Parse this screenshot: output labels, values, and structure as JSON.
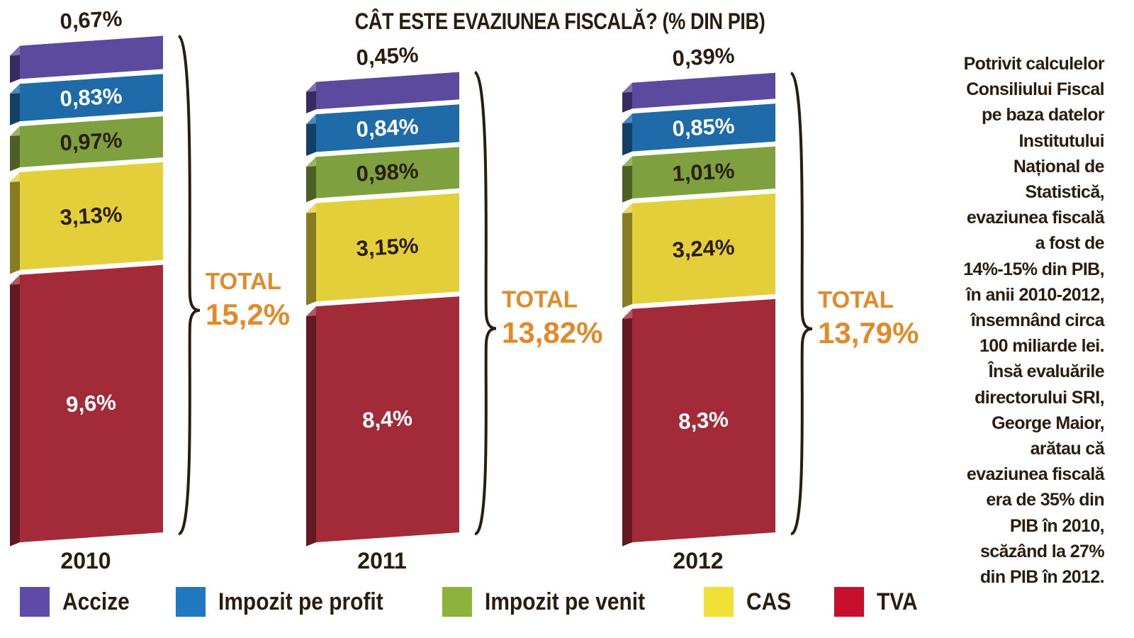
{
  "chart_data": {
    "type": "bar",
    "stacked": true,
    "title": "CÂT ESTE EVAZIUNEA FISCALĂ? (% DIN PIB)",
    "categories": [
      "2010",
      "2011",
      "2012"
    ],
    "series": [
      {
        "name": "TVA",
        "values": [
          9.6,
          8.4,
          8.3
        ],
        "labels": [
          "9,6%",
          "8,4%",
          "8,3%"
        ],
        "color": "#a32a38",
        "legend_color": "#c8102e"
      },
      {
        "name": "CAS",
        "values": [
          3.13,
          3.15,
          3.24
        ],
        "labels": [
          "3,13%",
          "3,15%",
          "3,24%"
        ],
        "color": "#e3cf3a",
        "legend_color": "#f3e034"
      },
      {
        "name": "Impozit pe venit",
        "values": [
          0.97,
          0.98,
          1.01
        ],
        "labels": [
          "0,97%",
          "0,98%",
          "1,01%"
        ],
        "color": "#7fa03f",
        "legend_color": "#8cb43c"
      },
      {
        "name": "Impozit pe profit",
        "values": [
          0.83,
          0.84,
          0.85
        ],
        "labels": [
          "0,83%",
          "0,84%",
          "0,85%"
        ],
        "color": "#1f6aa8",
        "legend_color": "#1f78c0"
      },
      {
        "name": "Accize",
        "values": [
          0.67,
          0.45,
          0.39
        ],
        "labels": [
          "0,67%",
          "0,45%",
          "0,39%"
        ],
        "color": "#5b4a9e",
        "legend_color": "#5e4ca8"
      }
    ],
    "totals": [
      {
        "label": "TOTAL",
        "value": "15,2%"
      },
      {
        "label": "TOTAL",
        "value": "13,82%"
      },
      {
        "label": "TOTAL",
        "value": "13,79%"
      }
    ],
    "total_color": "#e08a2a",
    "legend_order": [
      "Accize",
      "Impozit pe profit",
      "Impozit pe venit",
      "CAS",
      "TVA"
    ],
    "legend_placement": "bottom",
    "grid": false,
    "axes_visible": false
  },
  "note_lines": [
    "Potrivit calculelor",
    "Consiliului Fiscal",
    "pe baza datelor",
    "Institutului",
    "Național de",
    "Statistică,",
    "evaziunea fiscală",
    "a fost de",
    "14%-15% din PIB,",
    "în anii 2010-2012,",
    "însemnând circa",
    "100 miliarde lei.",
    "Însă evaluările",
    "directorului SRI,",
    "George Maior,",
    "arătau că",
    "evaziunea fiscală",
    "era de 35% din",
    "PIB în 2010,",
    "scăzând la 27%",
    "din PIB în 2012."
  ]
}
